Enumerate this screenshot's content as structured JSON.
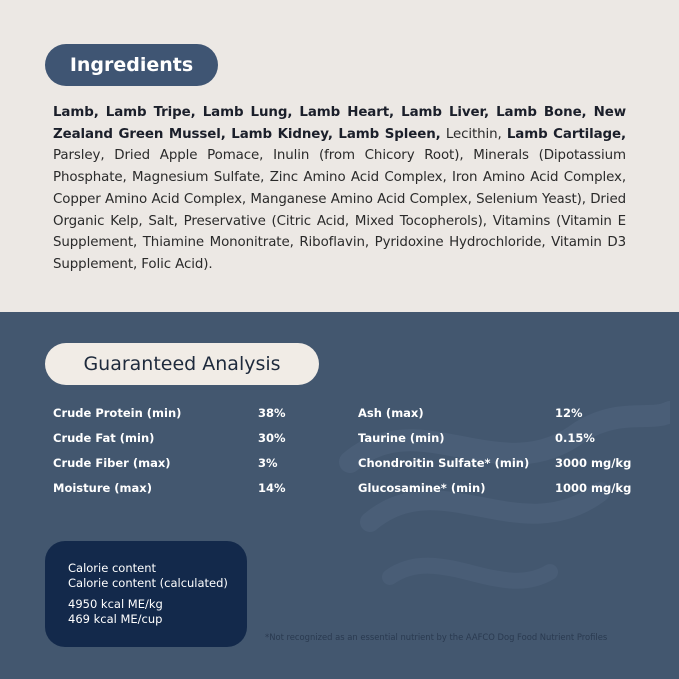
{
  "ingredients": {
    "title": "Ingredients",
    "segments": [
      {
        "text": "Lamb, Lamb Tripe, Lamb Lung, Lamb Heart, Lamb Liver, Lamb Bone, New Zealand Green Mussel, Lamb Kidney, Lamb Spleen,",
        "bold": true
      },
      {
        "text": " Lecithin, ",
        "bold": false
      },
      {
        "text": "Lamb Cartilage,",
        "bold": true
      },
      {
        "text": " Parsley, Dried Apple Pomace, Inulin (from Chicory Root), Minerals (Dipotassium Phosphate, Magnesium Sulfate, Zinc Amino Acid Complex, Iron Amino Acid Complex, Copper Amino Acid Complex, Manganese Amino Acid Complex, Selenium Yeast), Dried Organic Kelp, Salt, Preservative (Citric Acid, Mixed Tocopherols), Vitamins (Vitamin E Supplement, Thiamine Mononitrate, Riboflavin, Pyridoxine Hydrochloride, Vitamin D3 Supplement, Folic Acid).",
        "bold": false
      }
    ]
  },
  "analysis": {
    "title": "Guaranteed Analysis",
    "left": [
      {
        "label": "Crude Protein (min)",
        "value": "38%"
      },
      {
        "label": "Crude Fat (min)",
        "value": "30%"
      },
      {
        "label": "Crude Fiber (max)",
        "value": "3%"
      },
      {
        "label": "Moisture (max)",
        "value": "14%"
      }
    ],
    "right": [
      {
        "label": "Ash (max)",
        "value": "12%"
      },
      {
        "label": "Taurine (min)",
        "value": "0.15%"
      },
      {
        "label": "Chondroitin Sulfate* (min)",
        "value": "3000 mg/kg"
      },
      {
        "label": "Glucosamine* (min)",
        "value": "1000 mg/kg"
      }
    ]
  },
  "calorie": {
    "line1": "Calorie content",
    "line2": "Calorie content (calculated)",
    "per_kg": "4950 kcal ME/kg",
    "per_cup": "469 kcal ME/cup"
  },
  "footnote": "*Not recognized as an essential nutrient by the AAFCO Dog Food Nutrient Profiles",
  "colors": {
    "top_bg": "#ece8e4",
    "bottom_bg": "#43576f",
    "pill": "#3f5573",
    "calorie_box": "#13294b"
  }
}
